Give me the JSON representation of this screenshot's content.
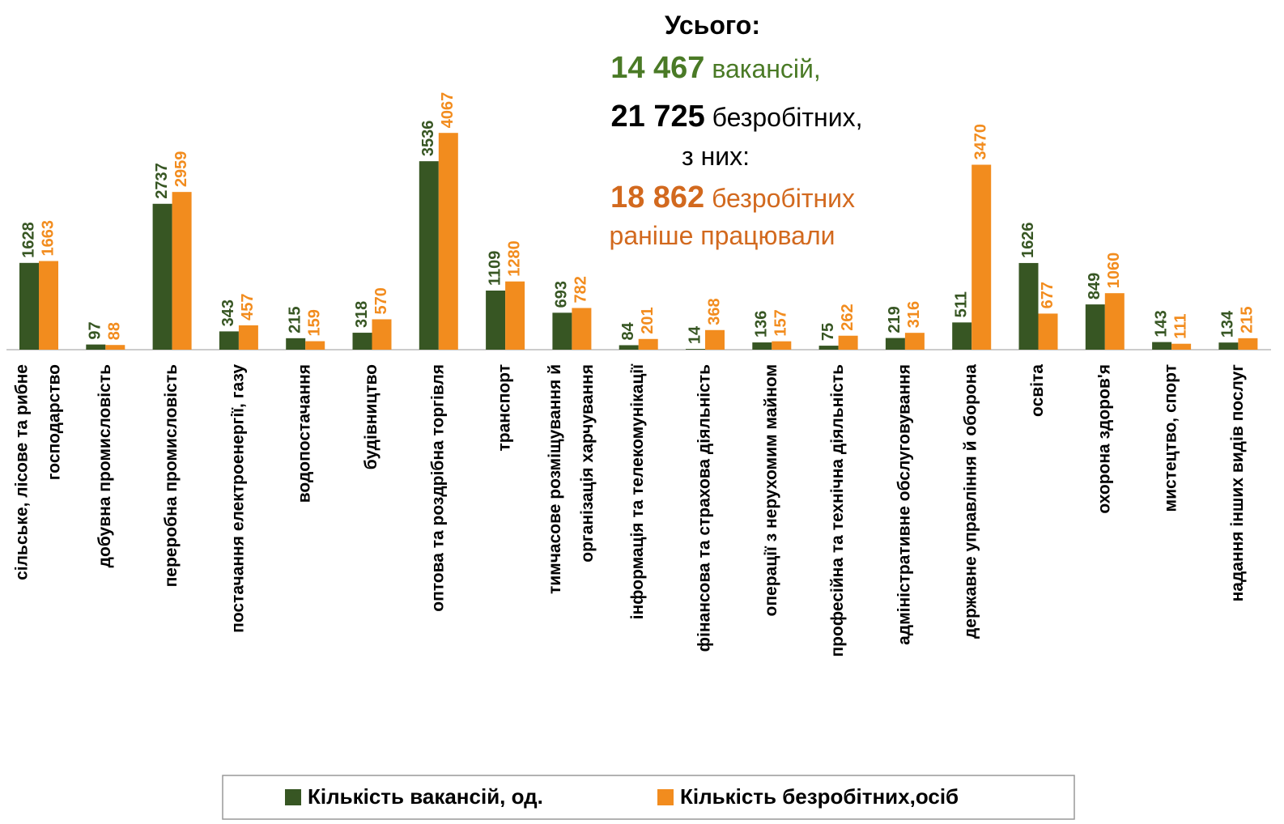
{
  "chart_data": {
    "type": "bar",
    "annotation": {
      "title": "Усього:",
      "vacancies_num": "14 467",
      "vacancies_text": "вакансій,",
      "unemployed_num": "21 725",
      "unemployed_text": "безробітних,",
      "of_them": "з них:",
      "worked_num": "18 862",
      "worked_text": "безробітних",
      "worked_text2": "раніше працювали"
    },
    "categories": [
      [
        "сільське, лісове та рибне",
        "господарство"
      ],
      [
        "добувна промисловість"
      ],
      [
        "переробна промисловість"
      ],
      [
        "постачання електроенергії, газу"
      ],
      [
        "водопостачання"
      ],
      [
        "будівництво"
      ],
      [
        "оптова та роздрібна торгівля"
      ],
      [
        "транспорт"
      ],
      [
        "тимчасове розміщування й",
        "організація харчування"
      ],
      [
        "інформація та телекомунікації"
      ],
      [
        "фінансова та страхова діяльність"
      ],
      [
        "операції з нерухомим майном"
      ],
      [
        "професійна та технічна діяльність"
      ],
      [
        "адміністративне обслуговування"
      ],
      [
        "державне управління й оборона"
      ],
      [
        "освіта"
      ],
      [
        "охорона здоров'я"
      ],
      [
        "мистецтво, спорт"
      ],
      [
        "надання інших видів послуг"
      ]
    ],
    "series": [
      {
        "name": "Кількість вакансій, од.",
        "color": "#375623",
        "values": [
          1628,
          97,
          2737,
          343,
          215,
          318,
          3536,
          1109,
          693,
          84,
          14,
          136,
          75,
          219,
          511,
          1626,
          849,
          143,
          134
        ]
      },
      {
        "name": "Кількість безробітних,осіб",
        "color": "#f28c1e",
        "values": [
          1663,
          88,
          2959,
          457,
          159,
          570,
          4067,
          1280,
          782,
          201,
          368,
          157,
          262,
          316,
          3470,
          677,
          1060,
          111,
          215
        ]
      }
    ],
    "ylim": [
      0,
      6500
    ],
    "legend": "bottom"
  }
}
